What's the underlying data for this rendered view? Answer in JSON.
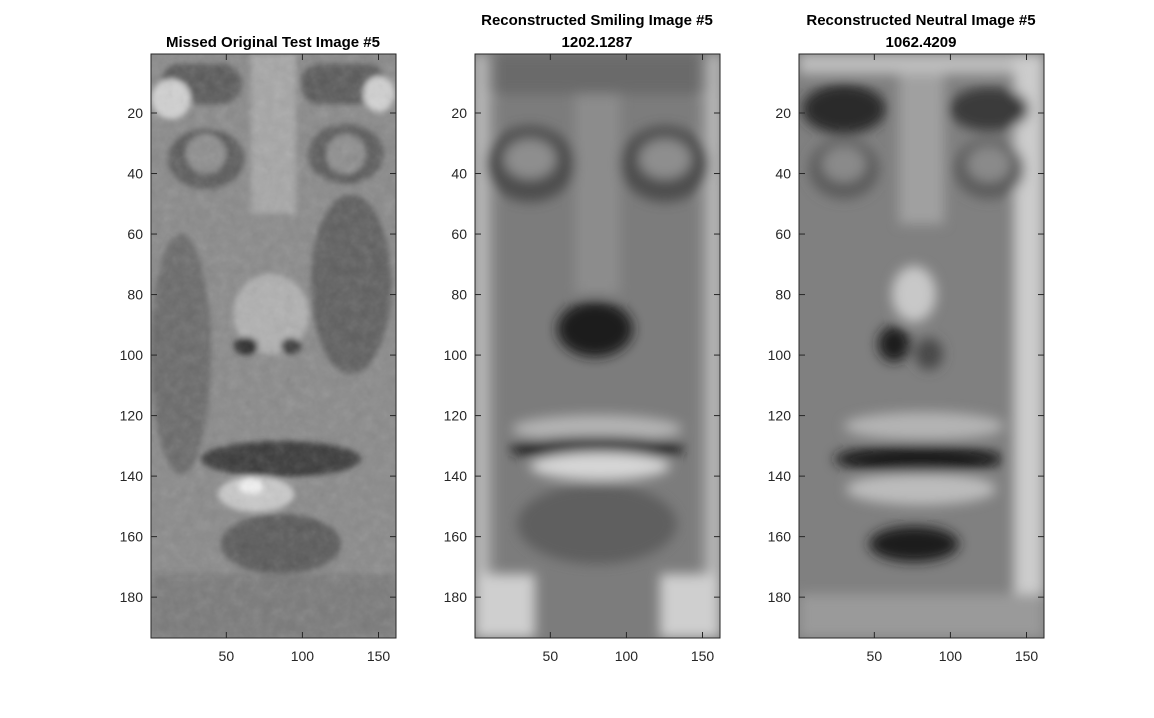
{
  "chart_data": [
    {
      "type": "heatmap",
      "title": "Missed Original Test Image #5",
      "subtitle": "",
      "image_rows": 193,
      "image_cols": 161,
      "xlim": [
        0.5,
        161.5
      ],
      "ylim": [
        0.5,
        193.5
      ],
      "x_ticks": [
        50,
        100,
        150
      ],
      "y_ticks": [
        20,
        40,
        60,
        80,
        100,
        120,
        140,
        160,
        180
      ],
      "x_tick_labels": [
        "50",
        "100",
        "150"
      ],
      "y_tick_labels": [
        "20",
        "40",
        "60",
        "80",
        "100",
        "120",
        "140",
        "160",
        "180"
      ],
      "colormap": "gray",
      "xlabel": "",
      "ylabel": "",
      "grid": false
    },
    {
      "type": "heatmap",
      "title": "Reconstructed Smiling Image #5",
      "subtitle": "1202.1287",
      "image_rows": 193,
      "image_cols": 161,
      "xlim": [
        0.5,
        161.5
      ],
      "ylim": [
        0.5,
        193.5
      ],
      "x_ticks": [
        50,
        100,
        150
      ],
      "y_ticks": [
        20,
        40,
        60,
        80,
        100,
        120,
        140,
        160,
        180
      ],
      "x_tick_labels": [
        "50",
        "100",
        "150"
      ],
      "y_tick_labels": [
        "20",
        "40",
        "60",
        "80",
        "100",
        "120",
        "140",
        "160",
        "180"
      ],
      "colormap": "gray",
      "xlabel": "",
      "ylabel": "",
      "grid": false
    },
    {
      "type": "heatmap",
      "title": "Reconstructed Neutral Image #5",
      "subtitle": "1062.4209",
      "image_rows": 193,
      "image_cols": 161,
      "xlim": [
        0.5,
        161.5
      ],
      "ylim": [
        0.5,
        193.5
      ],
      "x_ticks": [
        50,
        100,
        150
      ],
      "y_ticks": [
        20,
        40,
        60,
        80,
        100,
        120,
        140,
        160,
        180
      ],
      "x_tick_labels": [
        "50",
        "100",
        "150"
      ],
      "y_tick_labels": [
        "20",
        "40",
        "60",
        "80",
        "100",
        "120",
        "140",
        "160",
        "180"
      ],
      "colormap": "gray",
      "xlabel": "",
      "ylabel": "",
      "grid": false
    }
  ]
}
